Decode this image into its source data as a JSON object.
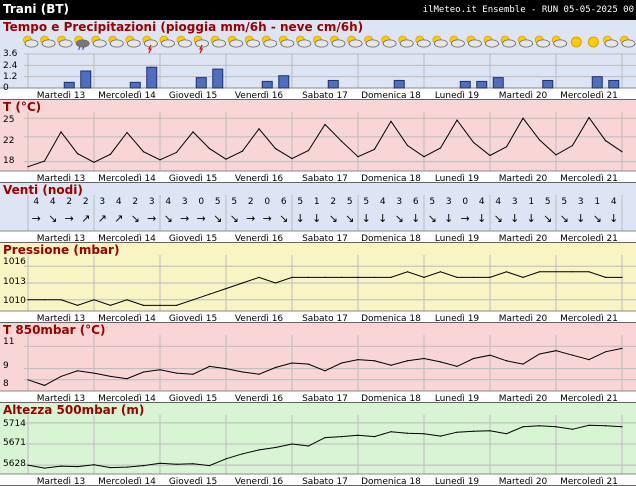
{
  "header": {
    "location": "Trani (BT)",
    "run_info": "ilMeteo.it Ensemble - RUN 05-05-2025 00"
  },
  "days": [
    "Martedì 13",
    "Mercoledì 14",
    "Giovedì 15",
    "Venerdì 16",
    "Sabato 17",
    "Domenica 18",
    "Lunedì 19",
    "Martedì 20",
    "Mercoledì 21"
  ],
  "weather_icons": [
    "partly-cloudy",
    "partly-cloudy",
    "partly-cloudy",
    "heavy-rain",
    "partly-cloudy",
    "partly-cloudy",
    "partly-cloudy",
    "thunderstorm",
    "partly-cloudy",
    "partly-cloudy",
    "thunderstorm",
    "partly-cloudy",
    "partly-cloudy",
    "partly-cloudy",
    "partly-cloudy",
    "partly-cloudy",
    "partly-cloudy",
    "partly-cloudy",
    "partly-cloudy",
    "partly-cloudy",
    "partly-cloudy",
    "partly-cloudy",
    "partly-cloudy",
    "partly-cloudy",
    "partly-cloudy",
    "partly-cloudy",
    "partly-cloudy",
    "partly-cloudy",
    "partly-cloudy",
    "partly-cloudy",
    "partly-cloudy",
    "partly-cloudy",
    "sun",
    "sun",
    "partly-cloudy",
    "partly-cloudy"
  ],
  "colors": {
    "bg_precip": "#dde4f4",
    "bg_temp": "#f9d6d6",
    "bg_wind": "#dde4f4",
    "bg_press": "#f8f4c4",
    "bg_t850": "#f9d6d6",
    "bg_z500": "#d8f4d4",
    "bar_fill": "#4f6fbe",
    "grid": "#bbbbbb",
    "title": "#990000"
  },
  "chart_data": [
    {
      "type": "bar",
      "title": "Tempo e Precipitazioni (pioggia mm/6h - neve cm/6h)",
      "y_ticks": [
        "3.6",
        "2.4",
        "1.2",
        "0"
      ],
      "ylim": [
        0,
        3.6
      ],
      "values": [
        0,
        0,
        0.6,
        1.8,
        0,
        0,
        0.6,
        2.2,
        0,
        0,
        1.1,
        2.0,
        0,
        0,
        0.7,
        1.3,
        0,
        0,
        0.8,
        0,
        0,
        0,
        0.8,
        0,
        0,
        0,
        0.7,
        0.7,
        1.1,
        0,
        0,
        0.8,
        0,
        0,
        1.2,
        0.8
      ]
    },
    {
      "type": "line",
      "title": "T (°C)",
      "y_ticks": [
        "25",
        "22",
        "18"
      ],
      "ylim": [
        16.5,
        26
      ],
      "values": [
        17.2,
        18.1,
        22.8,
        19.3,
        17.9,
        19.2,
        22.7,
        19.6,
        18.3,
        19.5,
        22.8,
        20.1,
        18.4,
        19.7,
        23.3,
        20.1,
        18.5,
        19.8,
        24.0,
        21.3,
        18.8,
        20.0,
        24.5,
        20.6,
        18.8,
        20.2,
        24.7,
        21.1,
        19.0,
        20.4,
        25.0,
        21.5,
        19.1,
        20.6,
        25.1,
        21.4,
        19.6
      ]
    },
    {
      "type": "table",
      "title": "Venti (nodi)",
      "speeds": [
        "4",
        "4",
        "2",
        "2",
        "3",
        "4",
        "2",
        "3",
        "4",
        "3",
        "0",
        "5",
        "5",
        "2",
        "0",
        "6",
        "5",
        "1",
        "2",
        "5",
        "5",
        "4",
        "3",
        "6",
        "5",
        "3",
        "0",
        "4",
        "4",
        "3",
        "1",
        "5",
        "5",
        "3",
        "1",
        "4"
      ],
      "direction_arrows": [
        "→",
        "↘",
        "→",
        "↗",
        "↗",
        "↗",
        "↘",
        "→",
        "↘",
        "→",
        "→",
        "↘",
        "↘",
        "→",
        "→",
        "↘",
        "↓",
        "↓",
        "↘",
        "↘",
        "↓",
        "↓",
        "↘",
        "↓",
        "↘",
        "↓",
        "→",
        "↓",
        "↘",
        "↓",
        "↓",
        "↘",
        "↘",
        "↓",
        "↘",
        "↓"
      ]
    },
    {
      "type": "line",
      "title": "Pressione (mbar)",
      "y_ticks": [
        "1016",
        "1013",
        "1010"
      ],
      "ylim": [
        1008,
        1018
      ],
      "values": [
        1010,
        1010,
        1010,
        1009,
        1010,
        1009,
        1010,
        1009,
        1009,
        1009,
        1010,
        1011,
        1012,
        1013,
        1014,
        1013,
        1014,
        1014,
        1014,
        1014,
        1014,
        1014,
        1014,
        1015,
        1014,
        1015,
        1014,
        1014,
        1014,
        1015,
        1014,
        1015,
        1015,
        1015,
        1015,
        1014,
        1014
      ]
    },
    {
      "type": "line",
      "title": "T 850mbar (°C)",
      "y_ticks": [
        "11",
        "9",
        "8"
      ],
      "ylim": [
        7,
        12
      ],
      "values": [
        8.0,
        7.5,
        8.3,
        8.8,
        8.6,
        8.3,
        8.1,
        8.7,
        8.9,
        8.6,
        8.5,
        9.2,
        9.0,
        8.7,
        8.5,
        9.1,
        9.5,
        9.4,
        8.8,
        9.5,
        9.8,
        9.7,
        9.3,
        9.7,
        9.9,
        9.6,
        9.2,
        9.9,
        10.2,
        9.7,
        9.4,
        10.3,
        10.6,
        10.2,
        9.8,
        10.5,
        10.8
      ]
    },
    {
      "type": "line",
      "title": "Altezza 500mbar (m)",
      "y_ticks": [
        "5714",
        "5671",
        "5628"
      ],
      "ylim": [
        5610,
        5730
      ],
      "values": [
        5628,
        5622,
        5626,
        5625,
        5629,
        5623,
        5624,
        5627,
        5632,
        5630,
        5631,
        5627,
        5641,
        5651,
        5659,
        5664,
        5671,
        5667,
        5684,
        5686,
        5689,
        5686,
        5696,
        5693,
        5692,
        5687,
        5695,
        5697,
        5698,
        5692,
        5706,
        5708,
        5706,
        5701,
        5709,
        5708,
        5706
      ]
    }
  ]
}
